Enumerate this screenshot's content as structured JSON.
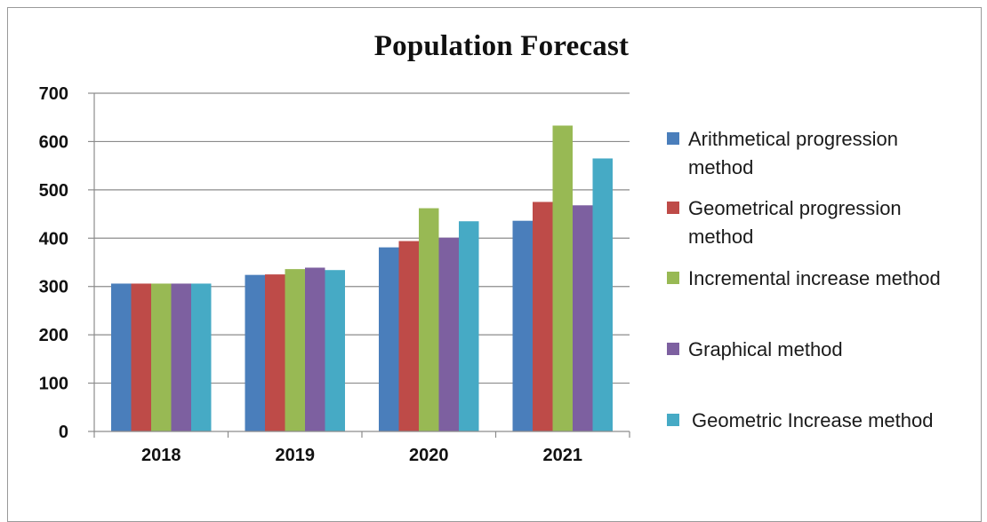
{
  "chart_data": {
    "type": "bar",
    "title": "Population Forecast",
    "categories": [
      "2018",
      "2019",
      "2020",
      "2021"
    ],
    "ylim": [
      0,
      700
    ],
    "yticks": [
      0,
      100,
      200,
      300,
      400,
      500,
      600,
      700
    ],
    "grid": true,
    "legend_position": "right",
    "series": [
      {
        "name": "Arithmetical progression method",
        "color": "#4a7ebb",
        "values": [
          306,
          324,
          381,
          436
        ]
      },
      {
        "name": "Geometrical progression method",
        "color": "#be4b48",
        "values": [
          306,
          325,
          394,
          475
        ]
      },
      {
        "name": "Incremental increase method",
        "color": "#98b954",
        "values": [
          306,
          336,
          462,
          633
        ]
      },
      {
        "name": "Graphical method",
        "color": "#7d60a0",
        "values": [
          306,
          339,
          401,
          468
        ]
      },
      {
        "name": "Geometric Increase method",
        "color": "#46aac5",
        "values": [
          306,
          334,
          435,
          565
        ]
      }
    ]
  }
}
